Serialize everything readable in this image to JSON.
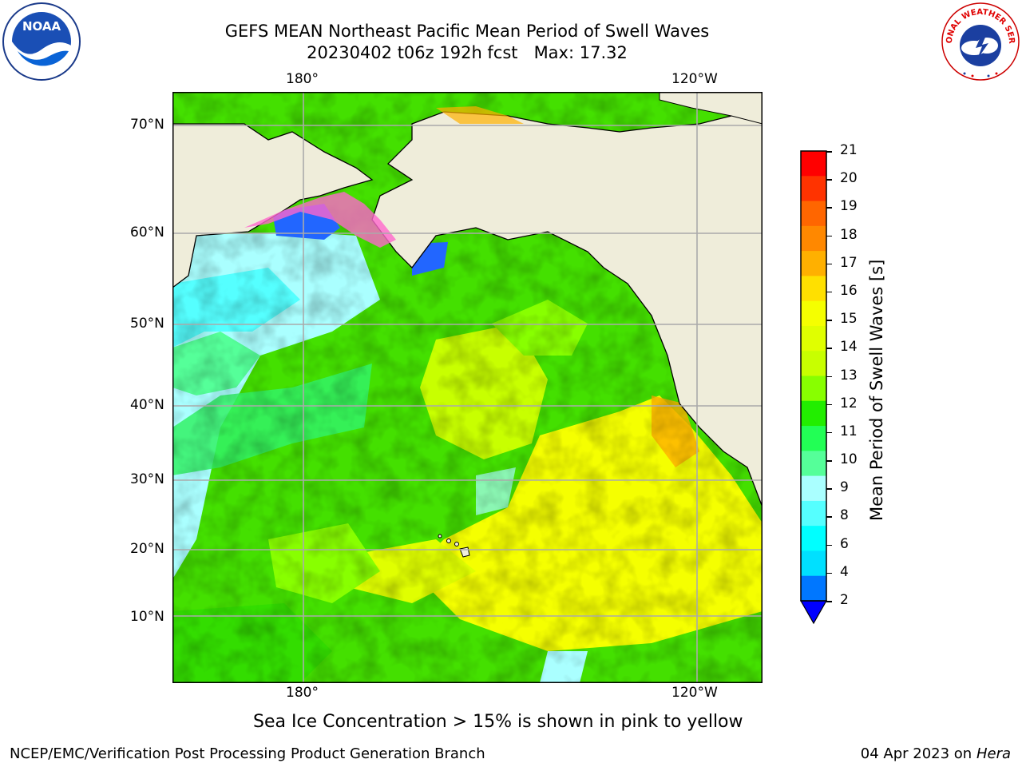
{
  "title": {
    "line1": "GEFS MEAN Northeast Pacific Mean Period of Swell Waves",
    "line2": "20230402 t06z 192h fcst   Max: 17.32"
  },
  "logos": {
    "left": {
      "icon": "noaa-logo-icon",
      "text": "NOAA"
    },
    "right": {
      "icon": "nws-logo-icon",
      "text": "NATIONAL WEATHER SERVICE"
    }
  },
  "map": {
    "top_lon_labels": [
      "180°",
      "120°W"
    ],
    "bottom_lon_labels": [
      "180°",
      "120°W"
    ],
    "lat_labels": [
      "70°N",
      "60°N",
      "50°N",
      "40°N",
      "30°N",
      "20°N",
      "10°N"
    ]
  },
  "colorbar": {
    "title": "Mean Period of Swell Waves [s]",
    "ticks": [
      "21",
      "20",
      "19",
      "18",
      "17",
      "16",
      "15",
      "14",
      "13",
      "12",
      "11",
      "10",
      "9",
      "8",
      "6",
      "4",
      "2"
    ],
    "colors": [
      "#ff0000",
      "#ff3300",
      "#ff6600",
      "#ff8800",
      "#ffb000",
      "#ffe000",
      "#f5ff00",
      "#e0ff00",
      "#c8ff00",
      "#88ff00",
      "#22ee00",
      "#22ff55",
      "#55ff99",
      "#aaffff",
      "#55ffff",
      "#00ffff",
      "#00e0ff",
      "#0077ff"
    ],
    "extend_color": "#0000ff"
  },
  "caption": "Sea Ice Concentration > 15% is shown in pink to yellow",
  "footer": {
    "left": "NCEP/EMC/Verification Post Processing Product Generation Branch",
    "date": "04 Apr 2023 on ",
    "system": "Hera"
  }
}
